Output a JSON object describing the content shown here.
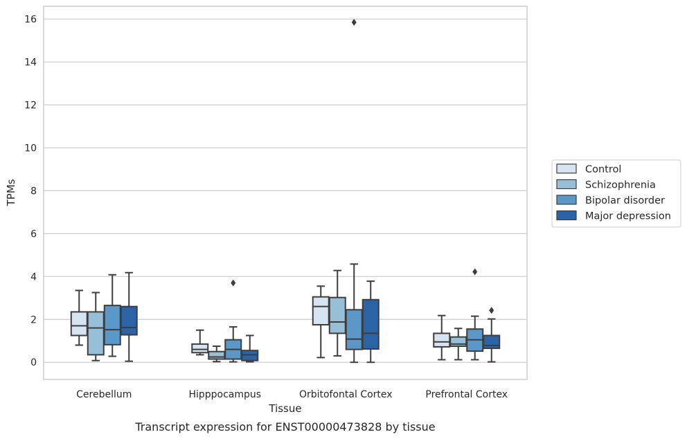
{
  "chart_data": {
    "type": "box",
    "title": "",
    "caption": "Transcript expression for ENST00000473828 by tissue",
    "xlabel": "Tissue",
    "ylabel": "TPMs",
    "ylim": [
      -0.8,
      16.6
    ],
    "yticks": [
      0,
      2,
      4,
      6,
      8,
      10,
      12,
      14,
      16
    ],
    "grid": "horizontal",
    "legend_position": "right",
    "categories": [
      "Cerebellum",
      "Hipppocampus",
      "Orbitofontal Cortex",
      "Prefrontal Cortex"
    ],
    "series": [
      {
        "name": "Control",
        "color": "#d6e3f1",
        "boxes": [
          {
            "whisker_low": 0.8,
            "q1": 1.25,
            "median": 1.7,
            "q3": 2.35,
            "whisker_high": 3.35,
            "outliers": []
          },
          {
            "whisker_low": 0.35,
            "q1": 0.45,
            "median": 0.6,
            "q3": 0.85,
            "whisker_high": 1.5,
            "outliers": []
          },
          {
            "whisker_low": 0.22,
            "q1": 1.75,
            "median": 2.6,
            "q3": 3.05,
            "whisker_high": 3.55,
            "outliers": []
          },
          {
            "whisker_low": 0.12,
            "q1": 0.72,
            "median": 0.95,
            "q3": 1.35,
            "whisker_high": 2.18,
            "outliers": []
          }
        ]
      },
      {
        "name": "Schizophrenia",
        "color": "#98bfd8",
        "boxes": [
          {
            "whisker_low": 0.08,
            "q1": 0.35,
            "median": 1.6,
            "q3": 2.35,
            "whisker_high": 3.25,
            "outliers": []
          },
          {
            "whisker_low": 0.03,
            "q1": 0.15,
            "median": 0.25,
            "q3": 0.5,
            "whisker_high": 0.75,
            "outliers": []
          },
          {
            "whisker_low": 0.3,
            "q1": 1.35,
            "median": 1.88,
            "q3": 3.02,
            "whisker_high": 4.28,
            "outliers": []
          },
          {
            "whisker_low": 0.12,
            "q1": 0.75,
            "median": 0.85,
            "q3": 1.18,
            "whisker_high": 1.58,
            "outliers": []
          }
        ]
      },
      {
        "name": "Bipolar disorder",
        "color": "#5b97c7",
        "boxes": [
          {
            "whisker_low": 0.28,
            "q1": 0.82,
            "median": 1.52,
            "q3": 2.65,
            "whisker_high": 4.08,
            "outliers": []
          },
          {
            "whisker_low": 0.02,
            "q1": 0.15,
            "median": 0.6,
            "q3": 1.05,
            "whisker_high": 1.65,
            "outliers": [
              3.7
            ]
          },
          {
            "whisker_low": 0.0,
            "q1": 0.6,
            "median": 1.08,
            "q3": 2.45,
            "whisker_high": 4.58,
            "outliers": [
              15.85
            ]
          },
          {
            "whisker_low": 0.12,
            "q1": 0.52,
            "median": 1.05,
            "q3": 1.55,
            "whisker_high": 2.15,
            "outliers": [
              4.22
            ]
          }
        ]
      },
      {
        "name": "Major depression",
        "color": "#2a64a6",
        "boxes": [
          {
            "whisker_low": 0.05,
            "q1": 1.28,
            "median": 1.62,
            "q3": 2.6,
            "whisker_high": 4.18,
            "outliers": []
          },
          {
            "whisker_low": 0.02,
            "q1": 0.08,
            "median": 0.35,
            "q3": 0.55,
            "whisker_high": 1.25,
            "outliers": []
          },
          {
            "whisker_low": 0.0,
            "q1": 0.62,
            "median": 1.35,
            "q3": 2.92,
            "whisker_high": 3.78,
            "outliers": []
          },
          {
            "whisker_low": 0.02,
            "q1": 0.65,
            "median": 0.78,
            "q3": 1.25,
            "whisker_high": 2.02,
            "outliers": [
              2.42
            ]
          }
        ]
      }
    ]
  }
}
